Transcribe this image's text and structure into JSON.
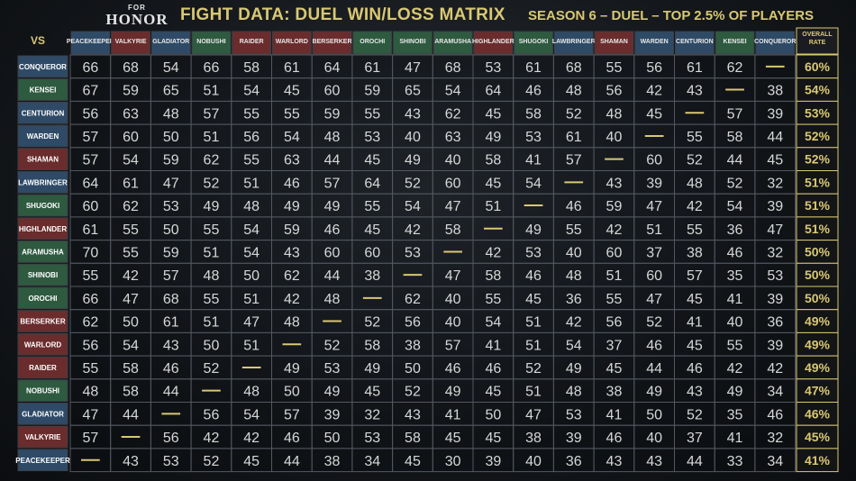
{
  "header": {
    "logo_top": "FOR",
    "logo_main": "HONOR",
    "title": "FIGHT DATA: DUEL WIN/LOSS MATRIX",
    "subtitle": "SEASON 6 – DUEL – TOP 2.5% OF PLAYERS",
    "vs_label": "VS",
    "overall_label_line1": "OVERALL",
    "overall_label_line2": "RATE"
  },
  "colors": {
    "gold": "#d9c873",
    "knight": "#2e4a66",
    "viking": "#6a2c2c",
    "samurai": "#2e5a40",
    "text": "#d7d7d7",
    "dash": "#d9c873"
  },
  "chart_data": {
    "type": "table",
    "title": "FIGHT DATA: DUEL WIN/LOSS MATRIX",
    "columns": [
      {
        "name": "PEACEKEEPER",
        "faction": "knight"
      },
      {
        "name": "VALKYRIE",
        "faction": "viking"
      },
      {
        "name": "GLADIATOR",
        "faction": "knight"
      },
      {
        "name": "NOBUSHI",
        "faction": "samurai"
      },
      {
        "name": "RAIDER",
        "faction": "viking"
      },
      {
        "name": "WARLORD",
        "faction": "viking"
      },
      {
        "name": "BERSERKER",
        "faction": "viking"
      },
      {
        "name": "OROCHI",
        "faction": "samurai"
      },
      {
        "name": "SHINOBI",
        "faction": "samurai"
      },
      {
        "name": "ARAMUSHA",
        "faction": "samurai"
      },
      {
        "name": "HIGHLANDER",
        "faction": "viking"
      },
      {
        "name": "SHUGOKI",
        "faction": "samurai"
      },
      {
        "name": "LAWBRINGER",
        "faction": "knight"
      },
      {
        "name": "SHAMAN",
        "faction": "viking"
      },
      {
        "name": "WARDEN",
        "faction": "knight"
      },
      {
        "name": "CENTURION",
        "faction": "knight"
      },
      {
        "name": "KENSEI",
        "faction": "samurai"
      },
      {
        "name": "CONQUEROR",
        "faction": "knight"
      }
    ],
    "rows": [
      {
        "name": "CONQUEROR",
        "values": [
          66,
          68,
          54,
          66,
          58,
          61,
          64,
          61,
          47,
          68,
          53,
          61,
          68,
          55,
          56,
          61,
          62,
          null
        ],
        "overall": "60%"
      },
      {
        "name": "KENSEI",
        "values": [
          67,
          59,
          65,
          51,
          54,
          45,
          60,
          59,
          65,
          54,
          64,
          46,
          48,
          56,
          42,
          43,
          null,
          38
        ],
        "overall": "54%"
      },
      {
        "name": "CENTURION",
        "values": [
          56,
          63,
          48,
          57,
          55,
          55,
          59,
          55,
          43,
          62,
          45,
          58,
          52,
          48,
          45,
          null,
          57,
          39
        ],
        "overall": "53%"
      },
      {
        "name": "WARDEN",
        "values": [
          57,
          60,
          50,
          51,
          56,
          54,
          48,
          53,
          40,
          63,
          49,
          53,
          61,
          40,
          null,
          55,
          58,
          44
        ],
        "overall": "52%"
      },
      {
        "name": "SHAMAN",
        "values": [
          57,
          54,
          59,
          62,
          55,
          63,
          44,
          45,
          49,
          40,
          58,
          41,
          57,
          null,
          60,
          52,
          44,
          45
        ],
        "overall": "52%"
      },
      {
        "name": "LAWBRINGER",
        "values": [
          64,
          61,
          47,
          52,
          51,
          46,
          57,
          64,
          52,
          60,
          45,
          54,
          null,
          43,
          39,
          48,
          52,
          32
        ],
        "overall": "51%"
      },
      {
        "name": "SHUGOKI",
        "values": [
          60,
          62,
          53,
          49,
          48,
          49,
          49,
          55,
          54,
          47,
          51,
          null,
          46,
          59,
          47,
          42,
          54,
          39
        ],
        "overall": "51%"
      },
      {
        "name": "HIGHLANDER",
        "values": [
          61,
          55,
          50,
          55,
          54,
          59,
          46,
          45,
          42,
          58,
          null,
          49,
          55,
          42,
          51,
          55,
          36,
          47
        ],
        "overall": "51%"
      },
      {
        "name": "ARAMUSHA",
        "values": [
          70,
          55,
          59,
          51,
          54,
          43,
          60,
          60,
          53,
          null,
          42,
          53,
          40,
          60,
          37,
          38,
          46,
          32
        ],
        "overall": "50%"
      },
      {
        "name": "SHINOBI",
        "values": [
          55,
          42,
          57,
          48,
          50,
          62,
          44,
          38,
          null,
          47,
          58,
          46,
          48,
          51,
          60,
          57,
          35,
          53
        ],
        "overall": "50%"
      },
      {
        "name": "OROCHI",
        "values": [
          66,
          47,
          68,
          55,
          51,
          42,
          48,
          null,
          62,
          40,
          55,
          45,
          36,
          55,
          47,
          45,
          41,
          39
        ],
        "overall": "50%"
      },
      {
        "name": "BERSERKER",
        "values": [
          62,
          50,
          61,
          51,
          47,
          48,
          null,
          52,
          56,
          40,
          54,
          51,
          42,
          56,
          52,
          41,
          40,
          36
        ],
        "overall": "49%"
      },
      {
        "name": "WARLORD",
        "values": [
          56,
          54,
          43,
          50,
          51,
          null,
          52,
          58,
          38,
          57,
          41,
          51,
          54,
          37,
          46,
          45,
          55,
          39
        ],
        "overall": "49%"
      },
      {
        "name": "RAIDER",
        "values": [
          55,
          58,
          46,
          52,
          null,
          49,
          53,
          49,
          50,
          46,
          46,
          52,
          49,
          45,
          44,
          46,
          42,
          42
        ],
        "overall": "49%"
      },
      {
        "name": "NOBUSHI",
        "values": [
          48,
          58,
          44,
          null,
          48,
          50,
          49,
          45,
          52,
          49,
          45,
          51,
          48,
          38,
          49,
          43,
          49,
          34
        ],
        "overall": "47%"
      },
      {
        "name": "GLADIATOR",
        "values": [
          47,
          44,
          null,
          56,
          54,
          57,
          39,
          32,
          43,
          41,
          50,
          47,
          53,
          41,
          50,
          52,
          35,
          46
        ],
        "overall": "46%"
      },
      {
        "name": "VALKYRIE",
        "values": [
          57,
          null,
          56,
          42,
          42,
          46,
          50,
          53,
          58,
          45,
          45,
          38,
          39,
          46,
          40,
          37,
          41,
          32
        ],
        "overall": "45%"
      },
      {
        "name": "PEACEKEEPER",
        "values": [
          null,
          43,
          53,
          52,
          45,
          44,
          38,
          34,
          45,
          30,
          39,
          40,
          36,
          43,
          43,
          44,
          33,
          34
        ],
        "overall": "41%"
      }
    ]
  }
}
